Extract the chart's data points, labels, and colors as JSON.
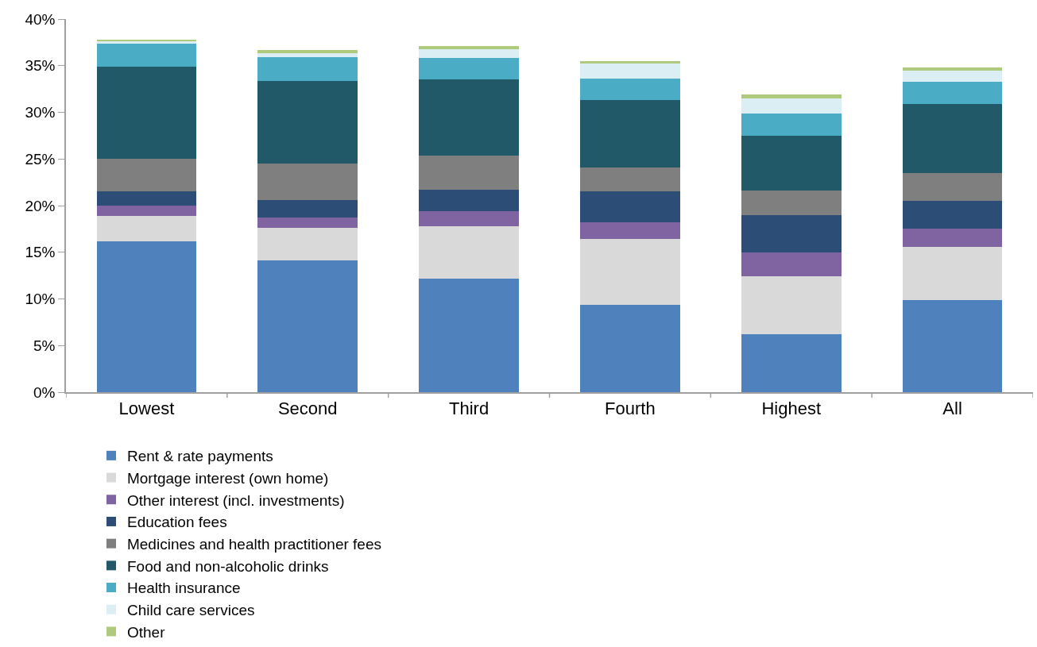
{
  "chart_data": {
    "type": "bar",
    "stacked": true,
    "categories": [
      "Lowest",
      "Second",
      "Third",
      "Fourth",
      "Highest",
      "All"
    ],
    "series": [
      {
        "name": "Rent & rate payments",
        "color": "#4f81bd",
        "values": [
          16.2,
          14.1,
          12.2,
          9.4,
          6.2,
          9.9
        ]
      },
      {
        "name": "Mortgage interest (own home)",
        "color": "#d9d9d9",
        "values": [
          2.7,
          3.5,
          5.6,
          7.0,
          6.2,
          5.7
        ]
      },
      {
        "name": "Other interest (incl. investments)",
        "color": "#8064a2",
        "values": [
          1.1,
          1.1,
          1.6,
          1.8,
          2.6,
          1.9
        ]
      },
      {
        "name": "Education fees",
        "color": "#2c4d75",
        "values": [
          1.5,
          1.9,
          2.3,
          3.3,
          4.0,
          3.0
        ]
      },
      {
        "name": "Medicines and health practitioner fees",
        "color": "#7f7f7f",
        "values": [
          3.5,
          3.9,
          3.7,
          2.6,
          2.6,
          3.0
        ]
      },
      {
        "name": "Food and non-alcoholic drinks",
        "color": "#215968",
        "values": [
          9.9,
          8.9,
          8.1,
          7.2,
          5.9,
          7.4
        ]
      },
      {
        "name": "Health insurance",
        "color": "#4bacc6",
        "values": [
          2.5,
          2.5,
          2.3,
          2.3,
          2.4,
          2.4
        ]
      },
      {
        "name": "Child care services",
        "color": "#dbeef4",
        "values": [
          0.2,
          0.4,
          1.0,
          1.6,
          1.6,
          1.2
        ]
      },
      {
        "name": "Other",
        "color": "#b0ca7d",
        "values": [
          0.2,
          0.4,
          0.3,
          0.3,
          0.4,
          0.3
        ]
      }
    ],
    "ylim": [
      0,
      40
    ],
    "yticks": [
      {
        "value": 0,
        "label": "0%"
      },
      {
        "value": 5,
        "label": "5%"
      },
      {
        "value": 10,
        "label": "10%"
      },
      {
        "value": 15,
        "label": "15%"
      },
      {
        "value": 20,
        "label": "20%"
      },
      {
        "value": 25,
        "label": "25%"
      },
      {
        "value": 30,
        "label": "30%"
      },
      {
        "value": 35,
        "label": "35%"
      },
      {
        "value": 40,
        "label": "40%"
      }
    ],
    "legend": "bottom"
  }
}
